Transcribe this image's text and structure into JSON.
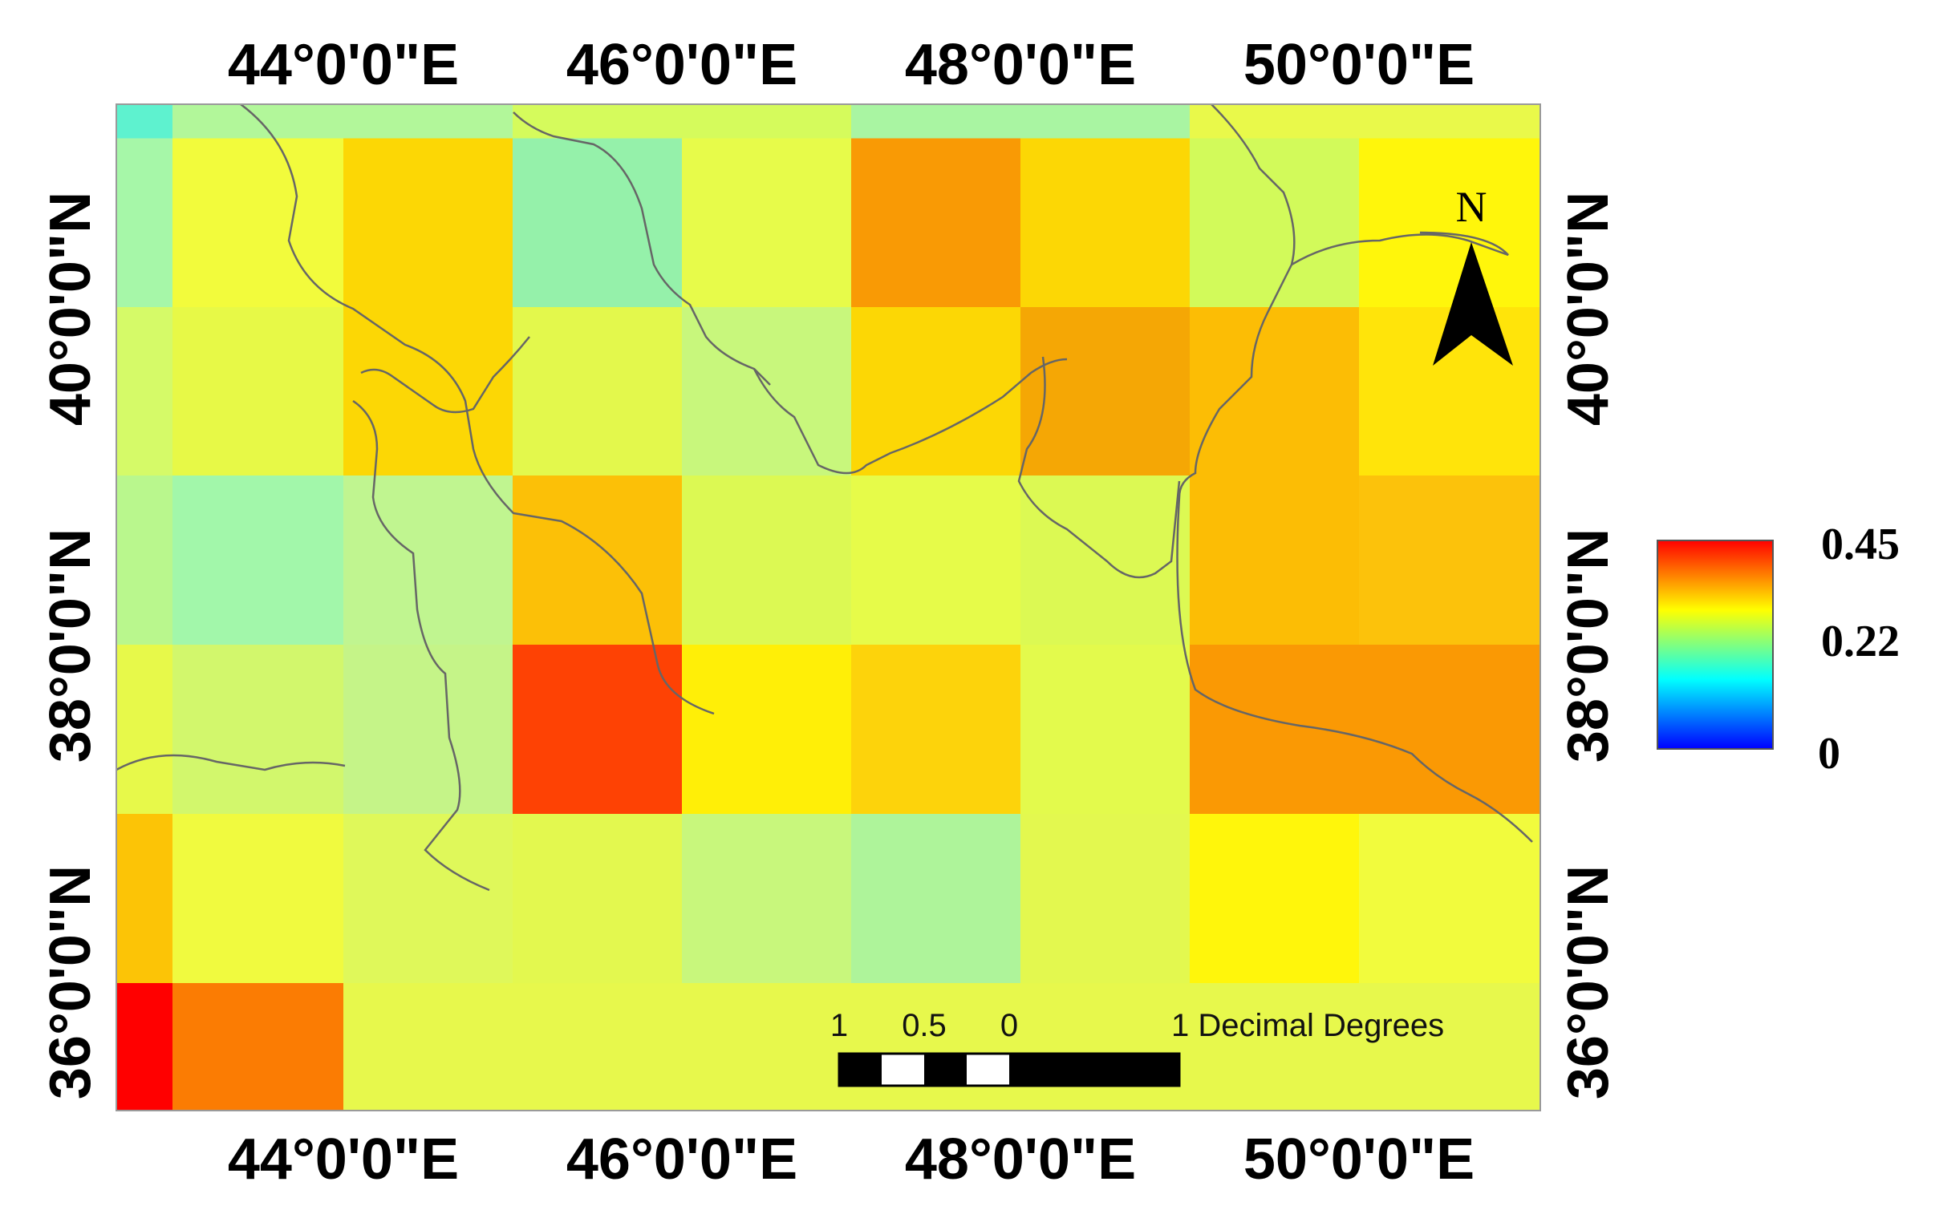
{
  "map": {
    "grid_colors": [
      [
        "#a6f7a8",
        "#f2fb3c",
        "#fcd705",
        "#95f1aa",
        "#e7fb4a",
        "#f99a05",
        "#fcd705",
        "#d2fa5a",
        "#fff60b"
      ],
      [
        "#d5fa68",
        "#e7f947",
        "#fcd705",
        "#e3f84c",
        "#c8f77c",
        "#fcd705",
        "#f5a705",
        "#fcbd05",
        "#ffe40a"
      ],
      [
        "#b9f78d",
        "#a2f7aa",
        "#c0f590",
        "#fcc007",
        "#dcf953",
        "#e6fb49",
        "#dcf953",
        "#fcbd05",
        "#fcc20b"
      ],
      [
        "#e7f94a",
        "#d2f76c",
        "#c5f488",
        "#fe4204",
        "#ffef07",
        "#fdd30b",
        "#e3fa4c",
        "#fa9904",
        "#fa9904"
      ],
      [
        "#fcc406",
        "#f0fa3f",
        "#dff85a",
        "#e3f84f",
        "#c8f77c",
        "#aef49a",
        "#e3f84f",
        "#fff60b",
        "#f1fb3d"
      ],
      [
        "#ff0000",
        "#fb7c03",
        "#e7f84c",
        "#e7f84c",
        "#e7f84c",
        "#e7f84c",
        "#e7f84c",
        "#e7f84c",
        "#e7f84c"
      ]
    ],
    "top_strip_colors": [
      "#5ef2cf",
      "#b2f79a",
      "#b2f79a",
      "#d5fb5c",
      "#d5fb5c",
      "#a9f5a2",
      "#a9f5a2",
      "#e9f94a",
      "#e9f94a"
    ],
    "border_lines_color": "#666666"
  },
  "axes": {
    "x_tick_labels": [
      "44°0'0\"E",
      "46°0'0\"E",
      "48°0'0\"E",
      "50°0'0\"E"
    ],
    "y_tick_labels": [
      "40°0'0\"N",
      "38°0'0\"N",
      "36°0'0\"N"
    ]
  },
  "north_arrow": {
    "label": "N"
  },
  "scale_bar": {
    "labels": [
      "1",
      "0.5",
      "0",
      "1 Decimal Degrees"
    ]
  },
  "legend": {
    "max_label": "0.45",
    "mid_label": "0.22",
    "min_label": "0",
    "gradient_colors": [
      "#ff0000",
      "#ff8000",
      "#ffff00",
      "#80ff80",
      "#00ffff",
      "#0080ff",
      "#0000ff"
    ]
  }
}
